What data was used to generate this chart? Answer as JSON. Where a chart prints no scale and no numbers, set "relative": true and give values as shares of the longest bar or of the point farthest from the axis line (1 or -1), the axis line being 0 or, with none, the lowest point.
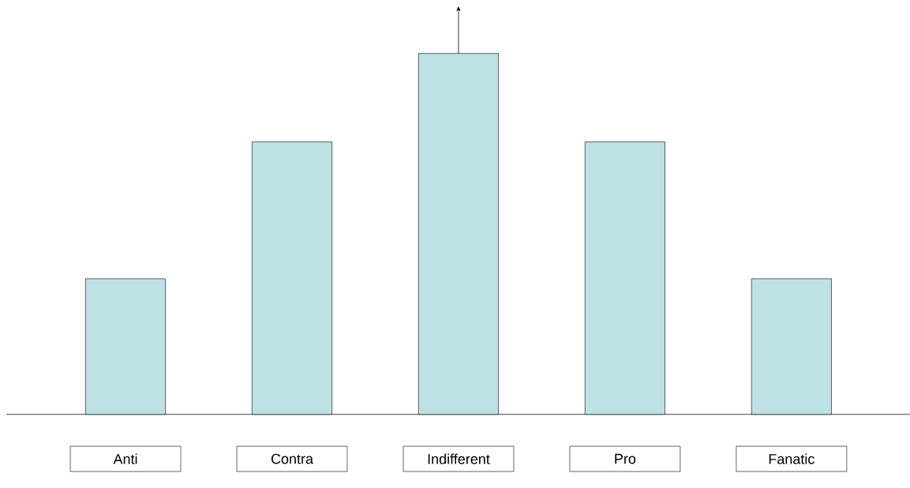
{
  "chart_data": {
    "type": "bar",
    "relative": true,
    "categories": [
      "Anti",
      "Contra",
      "Indifferent",
      "Pro",
      "Fanatic"
    ],
    "values": [
      0.376,
      0.755,
      1,
      0.755,
      0.376
    ],
    "color": "#bde1e4"
  }
}
